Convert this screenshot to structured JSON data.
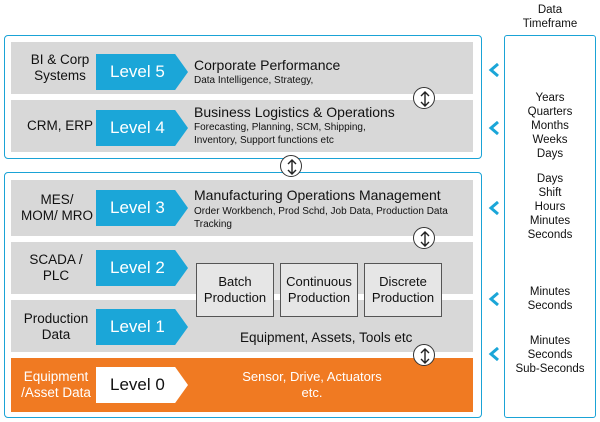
{
  "timeframe": {
    "header_line1": "Data",
    "header_line2": "Timeframe",
    "groups": [
      "Years\nQuarters\nMonths\nWeeks\nDays",
      "Days\nShift\nHours\nMinutes\nSeconds",
      "Minutes\nSeconds",
      "Minutes\nSeconds\nSub-Seconds"
    ]
  },
  "levels": [
    {
      "system": "BI & Corp\nSystems",
      "label": "Level 5",
      "title": "Corporate Performance",
      "detail": "Data Intelligence, Strategy,"
    },
    {
      "system": "CRM, ERP",
      "label": "Level 4",
      "title": "Business Logistics & Operations",
      "detail": "Forecasting, Planning, SCM, Shipping,\nInventory,  Support functions etc"
    },
    {
      "system": "MES/\nMOM/ MRO",
      "label": "Level 3",
      "title": "Manufacturing Operations Management",
      "detail": "Order Workbench, Prod Schd, Job Data, Production Data\nTracking"
    },
    {
      "system": "SCADA /\nPLC",
      "label": "Level 2"
    },
    {
      "system": "Production\nData",
      "label": "Level 1",
      "detail": "Equipment, Assets, Tools etc"
    },
    {
      "system": "Equipment\n/Asset Data",
      "label": "Level 0",
      "detail": "Sensor, Drive, Actuators\netc."
    }
  ],
  "production_types": [
    "Batch\nProduction",
    "Continuous\nProduction",
    "Discrete\nProduction"
  ],
  "colors": {
    "accent_blue": "#1ba6d8",
    "orange": "#f07a22",
    "band_grey": "#d8d8d8"
  }
}
